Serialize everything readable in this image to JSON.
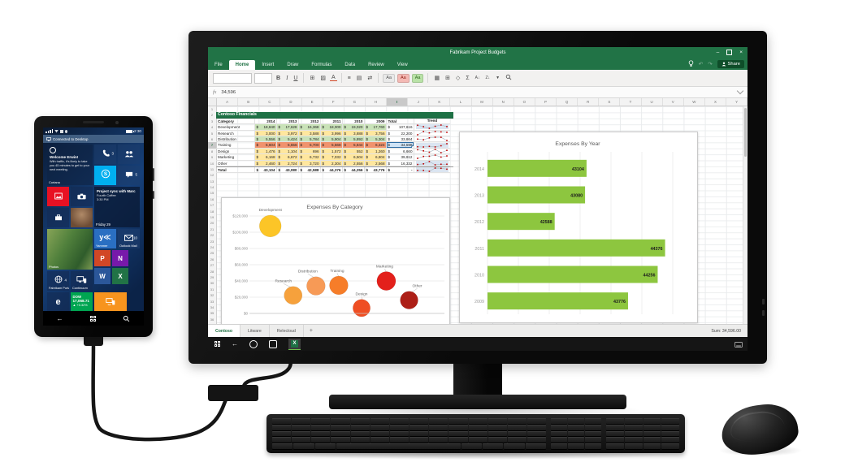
{
  "phone": {
    "status_time": "2:30",
    "banner_label": "Connected to Desktop",
    "cortana_tile": {
      "title": "Welcome Erwin!",
      "body": "With traffic, it's likely to take you 45 minutes to get to your next meeting.",
      "app": "Cortana"
    },
    "calendar_tile": {
      "title": "Project sync with Marc",
      "location": "Fourth Coffee",
      "time": "3:30 PM",
      "date": "Friday 29"
    },
    "stock_tile": {
      "symbol": "DOW",
      "value": "17,068.71",
      "change": "+0.32%"
    },
    "badges": {
      "phone": "3",
      "messaging": "5",
      "outlook": "10",
      "fabrikam": "4"
    },
    "labels": {
      "photos": "Photos",
      "yammer": "Yammer",
      "outlook": "Outlook Mail",
      "fabrikam": "Fabrikam Portal",
      "continuum": "Continuum"
    },
    "office_letters": {
      "powerpoint": "P",
      "onenote": "N",
      "word": "W",
      "excel": "X"
    },
    "edge_letter": "e",
    "yammer_letter": "y"
  },
  "excel": {
    "window_title": "Fabrikam Project Budgets",
    "ribbon_tabs": [
      "File",
      "Home",
      "Insert",
      "Draw",
      "Formulas",
      "Data",
      "Review",
      "View"
    ],
    "active_tab": "Home",
    "share_label": "Share",
    "formula_prefix": "fx",
    "formula_value": "34,596",
    "columns": [
      "A",
      "B",
      "C",
      "D",
      "E",
      "F",
      "G",
      "H",
      "I",
      "J",
      "K",
      "L",
      "M",
      "N",
      "O",
      "P",
      "Q",
      "R",
      "S",
      "T",
      "U",
      "V",
      "W",
      "X",
      "Y"
    ],
    "selected_column": "I",
    "selected_row": 7,
    "row_count": 38,
    "toolbar_icons": [
      "bold",
      "italic",
      "underline",
      "borders",
      "fill-color",
      "font-color",
      "align",
      "cell-format",
      "wrap-text",
      "style-normal",
      "style-bad",
      "style-good",
      "insert-cells",
      "delete-cells",
      "clear-format",
      "autosum",
      "sort-asc",
      "sort-desc",
      "filter",
      "find"
    ],
    "sheet": {
      "banner": "Contoso Financials",
      "headers": [
        "Category",
        "2014",
        "2013",
        "2012",
        "2011",
        "2010",
        "2009",
        "Total",
        "Trend"
      ],
      "rows": [
        {
          "category": "Development",
          "cells": [
            "18,840",
            "17,628",
            "16,368",
            "18,000",
            "19,020",
            "17,760"
          ],
          "total": "107,616",
          "tone": "green",
          "spark_bg": true,
          "selected_total": false
        },
        {
          "category": "Research",
          "cells": [
            "3,000",
            "3,972",
            "3,588",
            "3,996",
            "3,888",
            "3,756"
          ],
          "total": "22,200",
          "tone": "yellow",
          "spark_bg": false,
          "selected_total": false
        },
        {
          "category": "Distribution",
          "cells": [
            "5,556",
            "5,424",
            "5,784",
            "5,904",
            "5,892",
            "5,304"
          ],
          "total": "33,864",
          "tone": "green",
          "spark_bg": false,
          "selected_total": false
        },
        {
          "category": "Training",
          "cells": [
            "5,604",
            "5,556",
            "5,700",
            "5,568",
            "5,844",
            "6,324"
          ],
          "total": "34,596",
          "tone": "salmon",
          "spark_bg": true,
          "selected_total": true
        },
        {
          "category": "Design",
          "cells": [
            "1,476",
            "1,104",
            "696",
            "1,572",
            "552",
            "1,260"
          ],
          "total": "6,660",
          "tone": "yellow",
          "spark_bg": false,
          "selected_total": false
        },
        {
          "category": "Marketing",
          "cells": [
            "6,168",
            "6,672",
            "6,732",
            "7,032",
            "6,504",
            "6,804"
          ],
          "total": "39,912",
          "tone": "yellow",
          "spark_bg": false,
          "selected_total": false
        },
        {
          "category": "Other",
          "cells": [
            "2,460",
            "2,724",
            "3,720",
            "2,304",
            "2,556",
            "2,568"
          ],
          "total": "16,332",
          "tone": "yellow",
          "spark_bg": true,
          "selected_total": false
        }
      ],
      "total_row": {
        "category": "Total",
        "cells": [
          "43,104",
          "43,080",
          "42,588",
          "44,376",
          "44,256",
          "43,776"
        ],
        "total": "-",
        "spark_bg": true
      }
    },
    "sheet_tabs": [
      "Contoso",
      "Litware",
      "Relecloud"
    ],
    "active_sheet": "Contoso",
    "add_sheet_label": "+",
    "status_sum": "Sum: 34,596.00"
  },
  "chart_data": [
    {
      "type": "scatter",
      "subtype": "bubble",
      "title": "Expenses By Category",
      "points": [
        {
          "label": "Development",
          "value": 107616,
          "color": "#fcc527"
        },
        {
          "label": "Research",
          "value": 22200,
          "color": "#f6a13c"
        },
        {
          "label": "Distribution",
          "value": 33864,
          "color": "#f79a56"
        },
        {
          "label": "Training",
          "value": 34596,
          "color": "#f67d29"
        },
        {
          "label": "Design",
          "value": 6660,
          "color": "#ef4e23"
        },
        {
          "label": "Marketing",
          "value": 39912,
          "color": "#e3201b"
        },
        {
          "label": "Other",
          "value": 16332,
          "color": "#ad1f17"
        }
      ],
      "y_tick_labels": [
        "$0",
        "$20,000",
        "$40,000",
        "$60,000",
        "$80,000",
        "$100,000",
        "$120,000"
      ],
      "ylim": [
        0,
        120000
      ],
      "grid": true,
      "legend": false
    },
    {
      "type": "bar",
      "orientation": "horizontal",
      "title": "Expenses By Year",
      "categories": [
        "2014",
        "2013",
        "2012",
        "2011",
        "2010",
        "2009"
      ],
      "values": [
        43104,
        43080,
        42588,
        44376,
        44256,
        43776
      ],
      "labels": [
        "43104",
        "43080",
        "42588",
        "44376",
        "44256",
        "43776"
      ],
      "bar_color": "#8dc63f",
      "xlim": [
        41500,
        44500
      ],
      "grid": true,
      "legend": false
    }
  ]
}
